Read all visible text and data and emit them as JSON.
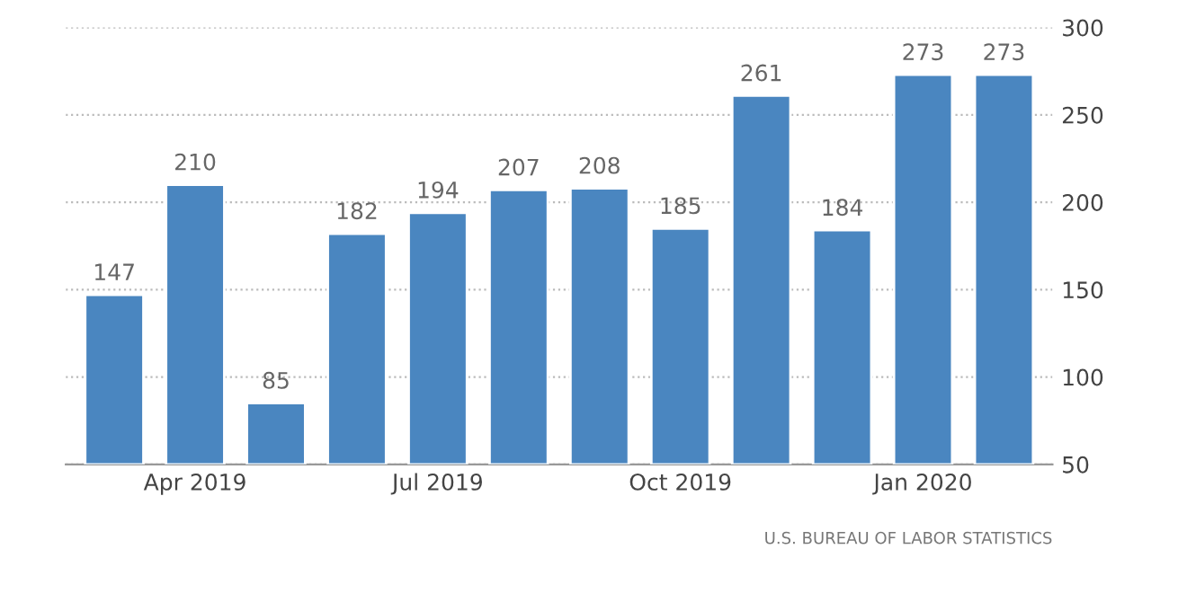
{
  "chart_data": {
    "type": "bar",
    "categories": [
      null,
      "Apr 2019",
      null,
      null,
      "Jul 2019",
      null,
      null,
      "Oct 2019",
      null,
      null,
      "Jan 2020",
      null
    ],
    "values": [
      147,
      210,
      85,
      182,
      194,
      207,
      208,
      185,
      261,
      184,
      273,
      273
    ],
    "color": "#4a86c0",
    "ylim": [
      50,
      300
    ],
    "yticks": [
      50,
      100,
      150,
      200,
      250,
      300
    ],
    "grid": "y",
    "data_labels": true,
    "annotations": [
      "U.S. BUREAU OF LABOR STATISTICS"
    ]
  }
}
